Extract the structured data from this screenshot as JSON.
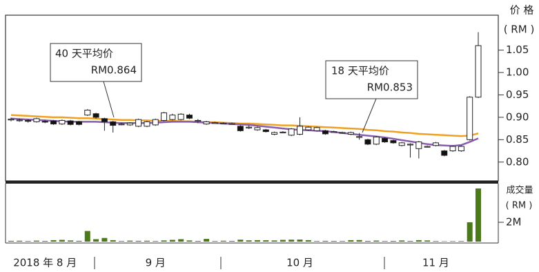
{
  "chart_data": {
    "type": "candlestick",
    "price_axis_label": "价 格",
    "price_axis_unit": "( RM )",
    "volume_axis_label": "成交量",
    "volume_axis_unit": "( RM )",
    "categories": [
      null,
      null,
      null,
      null,
      "2018 年 8 月",
      null,
      null,
      null,
      null,
      null,
      null,
      null,
      null,
      null,
      null,
      null,
      null,
      "9 月",
      null,
      null,
      null,
      null,
      null,
      null,
      null,
      null,
      null,
      null,
      null,
      null,
      null,
      null,
      null,
      null,
      "10 月",
      null,
      null,
      null,
      null,
      null,
      null,
      null,
      null,
      null,
      null,
      null,
      null,
      null,
      null,
      null,
      "11 月",
      null,
      null,
      null,
      null,
      null
    ],
    "open": [
      0.894,
      0.893,
      0.893,
      0.89,
      0.891,
      0.892,
      0.885,
      0.892,
      0.89,
      0.905,
      0.908,
      0.897,
      0.89,
      0.885,
      0.883,
      0.88,
      0.88,
      0.883,
      0.893,
      0.895,
      0.895,
      0.905,
      0.893,
      0.885,
      0.888,
      0.887,
      0.886,
      0.88,
      0.878,
      0.872,
      0.872,
      0.862,
      0.867,
      0.86,
      0.862,
      0.872,
      0.87,
      0.87,
      0.868,
      0.866,
      0.862,
      0.857,
      0.85,
      0.84,
      0.853,
      0.848,
      0.837,
      0.84,
      0.83,
      0.835,
      0.837,
      0.825,
      0.825,
      0.825,
      0.85,
      0.945
    ],
    "high": [
      0.899,
      0.897,
      0.896,
      0.899,
      0.894,
      0.894,
      0.895,
      0.894,
      0.892,
      0.918,
      0.91,
      0.899,
      0.892,
      0.888,
      0.889,
      0.897,
      0.892,
      0.897,
      0.912,
      0.908,
      0.909,
      0.908,
      0.896,
      0.892,
      0.89,
      0.889,
      0.888,
      0.882,
      0.882,
      0.879,
      0.874,
      0.868,
      0.869,
      0.876,
      0.9,
      0.88,
      0.879,
      0.872,
      0.87,
      0.868,
      0.868,
      0.865,
      0.852,
      0.858,
      0.855,
      0.85,
      0.845,
      0.842,
      0.847,
      0.837,
      0.845,
      0.827,
      0.837,
      0.837,
      0.947,
      1.09
    ],
    "low": [
      0.891,
      0.89,
      0.888,
      0.888,
      0.887,
      0.883,
      0.883,
      0.882,
      0.882,
      0.903,
      0.897,
      0.87,
      0.866,
      0.882,
      0.881,
      0.878,
      0.878,
      0.881,
      0.891,
      0.893,
      0.893,
      0.896,
      0.887,
      0.883,
      0.886,
      0.885,
      0.884,
      0.868,
      0.874,
      0.87,
      0.866,
      0.86,
      0.865,
      0.858,
      0.86,
      0.87,
      0.868,
      0.861,
      0.866,
      0.864,
      0.86,
      0.85,
      0.838,
      0.838,
      0.843,
      0.841,
      0.835,
      0.81,
      0.808,
      0.833,
      0.835,
      0.813,
      0.823,
      0.823,
      0.848,
      0.943
    ],
    "close": [
      0.896,
      0.894,
      0.891,
      0.897,
      0.89,
      0.885,
      0.893,
      0.884,
      0.884,
      0.916,
      0.9,
      0.89,
      0.882,
      0.885,
      0.887,
      0.895,
      0.89,
      0.895,
      0.91,
      0.905,
      0.907,
      0.898,
      0.893,
      0.89,
      0.888,
      0.887,
      0.886,
      0.87,
      0.878,
      0.877,
      0.868,
      0.866,
      0.867,
      0.874,
      0.88,
      0.878,
      0.877,
      0.863,
      0.868,
      0.866,
      0.866,
      0.857,
      0.84,
      0.856,
      0.845,
      0.843,
      0.843,
      0.84,
      0.845,
      0.835,
      0.843,
      0.815,
      0.835,
      0.835,
      0.945,
      1.06
    ],
    "moving_averages": [
      {
        "name": "40 天平均价",
        "value_label": "RM0.864",
        "color": "#f0a020",
        "values": [
          0.905,
          0.904,
          0.903,
          0.902,
          0.901,
          0.9,
          0.9,
          0.899,
          0.898,
          0.898,
          0.897,
          0.896,
          0.895,
          0.894,
          0.894,
          0.893,
          0.893,
          0.892,
          0.892,
          0.892,
          0.891,
          0.891,
          0.89,
          0.889,
          0.889,
          0.888,
          0.887,
          0.886,
          0.886,
          0.885,
          0.884,
          0.883,
          0.882,
          0.882,
          0.881,
          0.88,
          0.879,
          0.878,
          0.877,
          0.876,
          0.875,
          0.874,
          0.872,
          0.871,
          0.869,
          0.868,
          0.866,
          0.865,
          0.863,
          0.862,
          0.861,
          0.86,
          0.859,
          0.858,
          0.859,
          0.864
        ]
      },
      {
        "name": "18 天平均价",
        "value_label": "RM0.853",
        "color": "#8a5cb0",
        "values": [
          0.897,
          0.896,
          0.895,
          0.894,
          0.893,
          0.892,
          0.891,
          0.89,
          0.89,
          0.89,
          0.89,
          0.889,
          0.888,
          0.887,
          0.887,
          0.887,
          0.887,
          0.888,
          0.889,
          0.89,
          0.89,
          0.89,
          0.889,
          0.888,
          0.887,
          0.886,
          0.885,
          0.884,
          0.883,
          0.881,
          0.879,
          0.877,
          0.875,
          0.873,
          0.872,
          0.871,
          0.87,
          0.869,
          0.867,
          0.865,
          0.863,
          0.861,
          0.859,
          0.857,
          0.855,
          0.852,
          0.849,
          0.846,
          0.843,
          0.84,
          0.838,
          0.837,
          0.836,
          0.838,
          0.845,
          0.853
        ]
      }
    ],
    "volume": [
      80000,
      90000,
      60000,
      100000,
      70000,
      150000,
      180000,
      120000,
      80000,
      1100000,
      250000,
      380000,
      150000,
      60000,
      100000,
      80000,
      90000,
      60000,
      120000,
      180000,
      250000,
      120000,
      70000,
      280000,
      60000,
      90000,
      70000,
      200000,
      130000,
      150000,
      140000,
      120000,
      180000,
      200000,
      210000,
      150000,
      60000,
      80000,
      70000,
      60000,
      150000,
      160000,
      70000,
      110000,
      60000,
      70000,
      120000,
      70000,
      150000,
      120000,
      60000,
      40000,
      50000,
      60000,
      2000000,
      5500000
    ],
    "volume_color": "#4a7a1a",
    "ylim": [
      0.758,
      1.128
    ],
    "yticks": [
      {
        "value": 0.8,
        "label": "0.80"
      },
      0.85,
      {
        "value": 0.9,
        "label": "0.90"
      },
      0.95,
      {
        "value": 1.0,
        "label": "1.00"
      },
      1.05
    ],
    "y2lim": [
      0,
      6000000
    ],
    "y2ticks": [
      {
        "value": 2000000,
        "label": "2M"
      }
    ]
  }
}
